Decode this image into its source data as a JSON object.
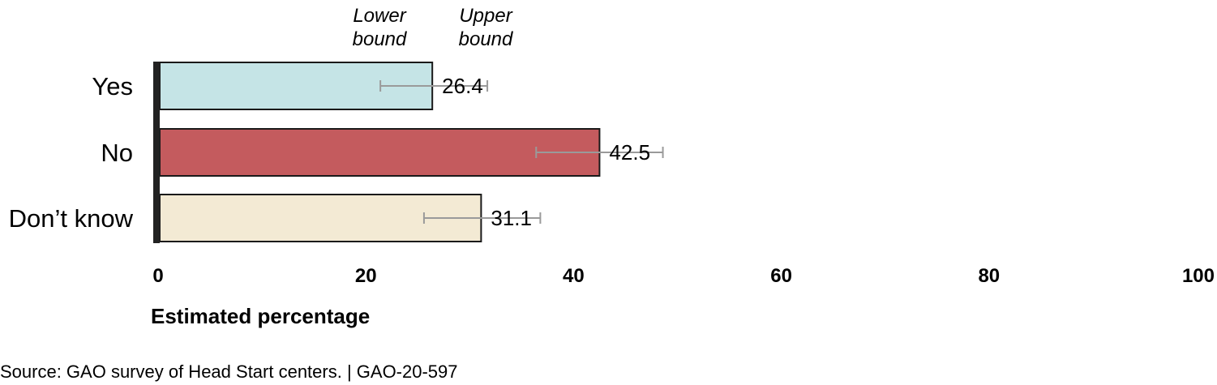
{
  "chart_data": {
    "type": "bar",
    "orientation": "horizontal",
    "categories": [
      "Yes",
      "No",
      "Don’t know"
    ],
    "values": [
      26.4,
      42.5,
      31.1
    ],
    "value_labels": [
      "26.4",
      "42.5",
      "31.1"
    ],
    "lower_bounds": [
      21.4,
      36.4,
      25.6
    ],
    "upper_bounds": [
      31.7,
      48.6,
      36.8
    ],
    "colors": [
      "#c5e4e6",
      "#c45b5e",
      "#f3ead4"
    ],
    "error_bar_color": "#9a9a9a",
    "xlabel": "Estimated percentage",
    "xlim": [
      0,
      100
    ],
    "xticks": [
      "0",
      "20",
      "40",
      "60",
      "80",
      "100"
    ],
    "xtick_values": [
      0,
      20,
      40,
      60,
      80,
      100
    ],
    "legend": {
      "lower": [
        "Lower",
        "bound"
      ],
      "upper": [
        "Upper",
        "bound"
      ]
    },
    "grid": false
  },
  "source": "Source: GAO survey of Head Start centers.  |  GAO-20-597"
}
